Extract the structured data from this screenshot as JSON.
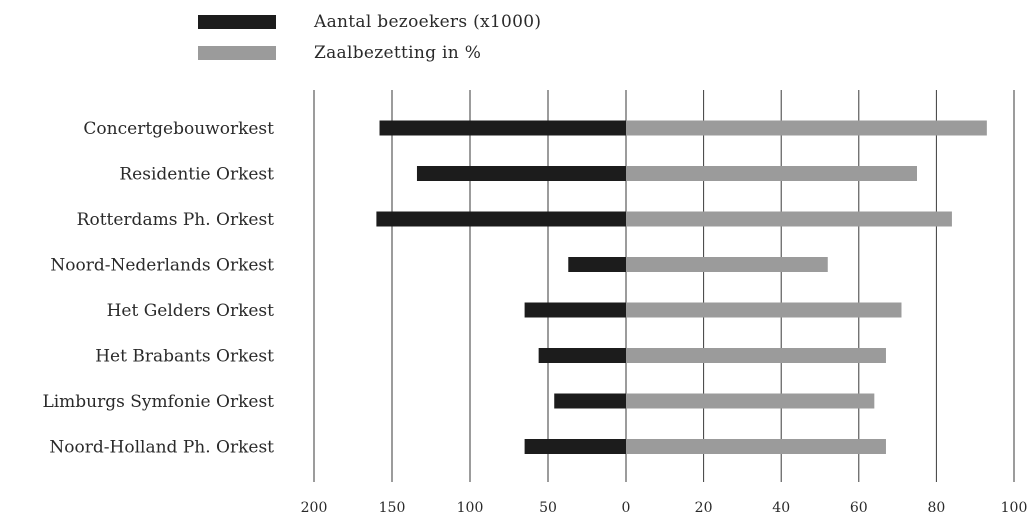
{
  "chart_data": {
    "type": "bar",
    "orientation": "horizontal",
    "layout": "diverging",
    "categories": [
      "Concertgebouworkest",
      "Residentie Orkest",
      "Rotterdams Ph. Orkest",
      "Noord-Nederlands Orkest",
      "Het Gelders Orkest",
      "Het Brabants Orkest",
      "Limburgs Symfonie Orkest",
      "Noord-Holland Ph. Orkest"
    ],
    "series": [
      {
        "name": "Aantal bezoekers (x1000)",
        "side": "left",
        "color": "#1c1c1c",
        "values": [
          158,
          134,
          160,
          37,
          65,
          56,
          46,
          65
        ]
      },
      {
        "name": "Zaalbezetting in %",
        "side": "right",
        "color": "#9b9b9b",
        "values": [
          93,
          75,
          84,
          52,
          71,
          67,
          64,
          67
        ]
      }
    ],
    "left_axis": {
      "ticks": [
        200,
        150,
        100,
        50,
        0
      ],
      "tick_labels": [
        "200",
        "150",
        "100",
        "50",
        "0"
      ],
      "range": [
        0,
        200
      ]
    },
    "right_axis": {
      "ticks": [
        20,
        40,
        60,
        80,
        100
      ],
      "tick_labels": [
        "20",
        "40",
        "60",
        "80",
        "100"
      ],
      "range": [
        0,
        100
      ]
    },
    "grid": true,
    "legend_position": "top-left",
    "title": "",
    "xlabel": "",
    "ylabel": ""
  }
}
